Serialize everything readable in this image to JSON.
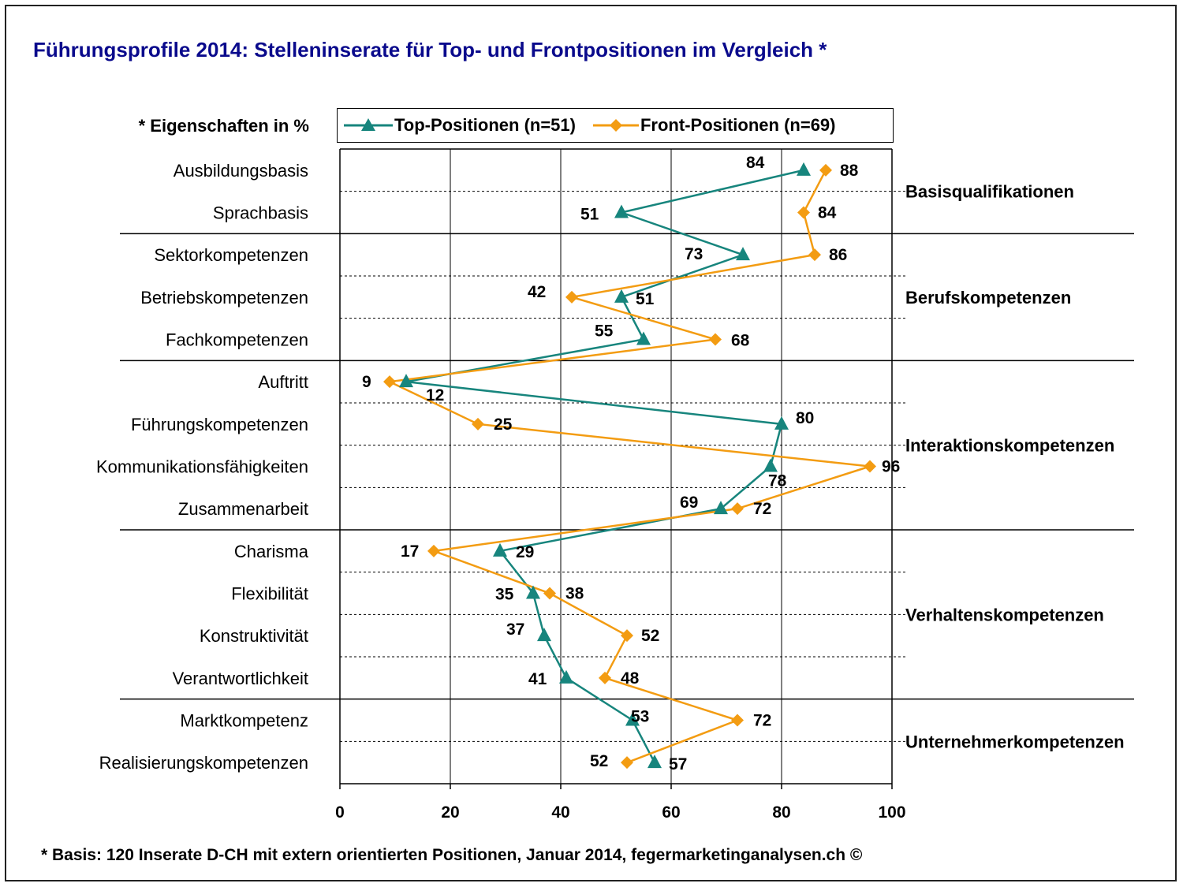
{
  "title": "Führungsprofile 2014: Stelleninserate für Top- und Frontpositionen im Vergleich *",
  "y_axis_header": "* Eigenschaften in %",
  "footnote": "* Basis: 120 Inserate D-CH mit extern orientierten Positionen, Januar 2014, fegermarketinganalysen.ch ©",
  "colors": {
    "top": "#17857d",
    "front": "#f39c12",
    "grid": "#000000",
    "title": "#0a0a8c"
  },
  "chart_data": {
    "type": "line",
    "orientation": "horizontal",
    "categories": [
      "Ausbildungsbasis",
      "Sprachbasis",
      "Sektorkompetenzen",
      "Betriebskompetenzen",
      "Fachkompetenzen",
      "Auftritt",
      "Führungskompetenzen",
      "Kommunikationsfähigkeiten",
      "Zusammenarbeit",
      "Charisma",
      "Flexibilität",
      "Konstruktivität",
      "Verantwortlichkeit",
      "Marktkompetenz",
      "Realisierungskompetenzen"
    ],
    "series": [
      {
        "name": "Top-Positionen (n=51)",
        "marker": "triangle",
        "values": [
          84,
          51,
          73,
          51,
          55,
          12,
          80,
          78,
          69,
          29,
          35,
          37,
          41,
          53,
          57
        ]
      },
      {
        "name": "Front-Positionen (n=69)",
        "marker": "diamond",
        "values": [
          88,
          84,
          86,
          42,
          68,
          9,
          25,
          96,
          72,
          17,
          38,
          52,
          48,
          72,
          52
        ]
      }
    ],
    "groups": [
      {
        "label": "Basisqualifikationen",
        "from": 0,
        "to": 1
      },
      {
        "label": "Berufskompetenzen",
        "from": 2,
        "to": 4
      },
      {
        "label": "Interaktionskompetenzen",
        "from": 5,
        "to": 8
      },
      {
        "label": "Verhaltenskompetenzen",
        "from": 9,
        "to": 12
      },
      {
        "label": "Unternehmerkompetenzen",
        "from": 13,
        "to": 14
      }
    ],
    "x_ticks": [
      0,
      20,
      40,
      60,
      80,
      100
    ],
    "xlim": [
      0,
      100
    ],
    "legend_position": "top",
    "grid": true
  }
}
